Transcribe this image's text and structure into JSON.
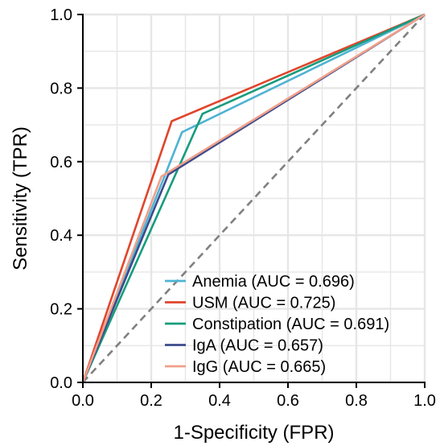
{
  "chart_data": {
    "type": "line",
    "xlabel": "1-Specificity (FPR)",
    "ylabel": "Sensitivity (TPR)",
    "xlim": [
      0,
      1
    ],
    "ylim": [
      0,
      1
    ],
    "x_ticks": [
      "0.0",
      "0.2",
      "0.4",
      "0.6",
      "0.8",
      "1.0"
    ],
    "y_ticks": [
      "0.0",
      "0.2",
      "0.4",
      "0.6",
      "0.8",
      "1.0"
    ],
    "grid": true,
    "legend_position": "bottom-right",
    "reference_line": {
      "x": [
        0,
        1
      ],
      "y": [
        0,
        1
      ],
      "style": "dashed",
      "color": "#808080"
    },
    "series": [
      {
        "name": "Anemia (AUC = 0.696)",
        "color": "#4EB3D3",
        "x": [
          0,
          0.29,
          1
        ],
        "y": [
          0,
          0.68,
          1
        ]
      },
      {
        "name": "USM (AUC = 0.725)",
        "color": "#E0452B",
        "x": [
          0,
          0.26,
          1
        ],
        "y": [
          0,
          0.71,
          1
        ]
      },
      {
        "name": "Constipation (AUC = 0.691)",
        "color": "#179C7D",
        "x": [
          0,
          0.35,
          1
        ],
        "y": [
          0,
          0.73,
          1
        ]
      },
      {
        "name": "IgA (AUC = 0.657)",
        "color": "#3B4A8C",
        "x": [
          0,
          0.25,
          1
        ],
        "y": [
          0,
          0.565,
          1
        ]
      },
      {
        "name": "IgG (AUC = 0.665)",
        "color": "#F0A08A",
        "x": [
          0,
          0.23,
          1
        ],
        "y": [
          0,
          0.56,
          1
        ]
      }
    ]
  }
}
